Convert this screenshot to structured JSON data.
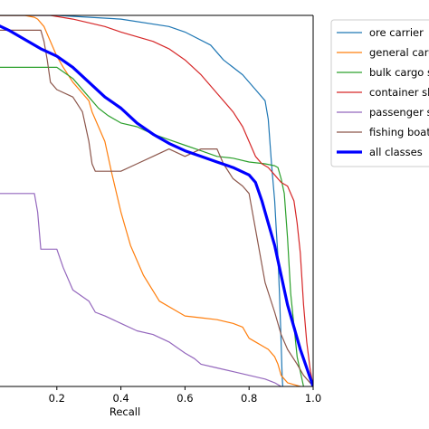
{
  "chart_data": {
    "type": "line",
    "xlabel": "Recall",
    "xlim": [
      0.0,
      1.0
    ],
    "ylim": [
      0.0,
      1.0
    ],
    "x_ticks": [
      "0.2",
      "0.4",
      "0.6",
      "0.8",
      "1.0"
    ],
    "x_tick_values": [
      0.2,
      0.4,
      0.6,
      0.8,
      1.0
    ],
    "legend_placement": "outside-right",
    "series": [
      {
        "name": "ore carrier",
        "color": "#1f77b4",
        "width": 1.2,
        "x": [
          0.0,
          0.2,
          0.4,
          0.55,
          0.6,
          0.68,
          0.72,
          0.78,
          0.82,
          0.85,
          0.86,
          0.87,
          0.88,
          0.885,
          0.89,
          0.895,
          0.9,
          0.903,
          0.905
        ],
        "y": [
          1.0,
          1.0,
          0.99,
          0.97,
          0.955,
          0.92,
          0.88,
          0.84,
          0.8,
          0.77,
          0.72,
          0.6,
          0.5,
          0.42,
          0.35,
          0.25,
          0.12,
          0.03,
          0.0
        ]
      },
      {
        "name": "general cargo ship",
        "color": "#ff7f0e",
        "width": 1.2,
        "x": [
          0.0,
          0.1,
          0.13,
          0.14,
          0.16,
          0.18,
          0.2,
          0.22,
          0.25,
          0.28,
          0.3,
          0.31,
          0.33,
          0.35,
          0.37,
          0.4,
          0.43,
          0.47,
          0.52,
          0.58,
          0.6,
          0.65,
          0.7,
          0.75,
          0.78,
          0.8,
          0.82,
          0.86,
          0.88,
          0.89,
          0.9,
          0.91,
          0.92,
          0.94,
          0.96
        ],
        "y": [
          1.0,
          1.0,
          0.995,
          0.99,
          0.97,
          0.93,
          0.89,
          0.86,
          0.82,
          0.79,
          0.77,
          0.74,
          0.7,
          0.66,
          0.58,
          0.47,
          0.38,
          0.3,
          0.23,
          0.2,
          0.19,
          0.185,
          0.18,
          0.17,
          0.16,
          0.13,
          0.12,
          0.1,
          0.08,
          0.06,
          0.03,
          0.02,
          0.01,
          0.005,
          0.0
        ]
      },
      {
        "name": "bulk cargo ship",
        "color": "#2ca02c",
        "width": 1.2,
        "x": [
          0.0,
          0.2,
          0.25,
          0.3,
          0.33,
          0.36,
          0.4,
          0.45,
          0.5,
          0.55,
          0.6,
          0.65,
          0.7,
          0.75,
          0.8,
          0.85,
          0.88,
          0.89,
          0.9,
          0.91,
          0.92,
          0.93,
          0.95,
          0.97
        ],
        "y": [
          0.86,
          0.86,
          0.83,
          0.78,
          0.75,
          0.73,
          0.71,
          0.7,
          0.68,
          0.665,
          0.65,
          0.635,
          0.62,
          0.615,
          0.605,
          0.6,
          0.595,
          0.59,
          0.56,
          0.52,
          0.4,
          0.25,
          0.08,
          0.0
        ]
      },
      {
        "name": "container ship",
        "color": "#d62728",
        "width": 1.2,
        "x": [
          0.0,
          0.18,
          0.25,
          0.35,
          0.4,
          0.5,
          0.55,
          0.6,
          0.65,
          0.7,
          0.75,
          0.78,
          0.8,
          0.82,
          0.84,
          0.86,
          0.88,
          0.9,
          0.92,
          0.94,
          0.95,
          0.96,
          0.97,
          0.98,
          0.99,
          1.0
        ],
        "y": [
          1.0,
          1.0,
          0.99,
          0.97,
          0.955,
          0.93,
          0.91,
          0.88,
          0.84,
          0.79,
          0.74,
          0.7,
          0.66,
          0.62,
          0.6,
          0.59,
          0.57,
          0.55,
          0.54,
          0.5,
          0.44,
          0.36,
          0.22,
          0.12,
          0.05,
          0.0
        ]
      },
      {
        "name": "passenger ship",
        "color": "#9467bd",
        "width": 1.2,
        "x": [
          0.0,
          0.13,
          0.14,
          0.15,
          0.2,
          0.22,
          0.25,
          0.3,
          0.32,
          0.35,
          0.4,
          0.45,
          0.5,
          0.55,
          0.6,
          0.63,
          0.65,
          0.7,
          0.75,
          0.8,
          0.85,
          0.88,
          0.9
        ],
        "y": [
          0.52,
          0.52,
          0.47,
          0.37,
          0.37,
          0.32,
          0.26,
          0.23,
          0.2,
          0.19,
          0.17,
          0.15,
          0.14,
          0.12,
          0.09,
          0.075,
          0.06,
          0.05,
          0.04,
          0.03,
          0.02,
          0.01,
          0.0
        ]
      },
      {
        "name": "fishing boat",
        "color": "#8c564b",
        "width": 1.2,
        "x": [
          0.0,
          0.15,
          0.16,
          0.17,
          0.18,
          0.2,
          0.25,
          0.28,
          0.3,
          0.31,
          0.32,
          0.35,
          0.4,
          0.45,
          0.5,
          0.55,
          0.6,
          0.65,
          0.7,
          0.72,
          0.75,
          0.78,
          0.8,
          0.85,
          0.88,
          0.9,
          0.92,
          0.95,
          0.97,
          0.99,
          1.0
        ],
        "y": [
          0.96,
          0.96,
          0.93,
          0.88,
          0.82,
          0.8,
          0.78,
          0.74,
          0.66,
          0.6,
          0.58,
          0.58,
          0.58,
          0.6,
          0.62,
          0.64,
          0.62,
          0.64,
          0.64,
          0.6,
          0.56,
          0.54,
          0.52,
          0.28,
          0.2,
          0.14,
          0.1,
          0.06,
          0.03,
          0.01,
          0.0
        ]
      },
      {
        "name": "all classes",
        "color": "#0000ff",
        "width": 3.2,
        "x": [
          0.0,
          0.05,
          0.1,
          0.15,
          0.2,
          0.25,
          0.3,
          0.35,
          0.4,
          0.45,
          0.5,
          0.55,
          0.6,
          0.65,
          0.7,
          0.75,
          0.8,
          0.82,
          0.84,
          0.86,
          0.88,
          0.9,
          0.92,
          0.94,
          0.96,
          0.98,
          1.0
        ],
        "y": [
          0.98,
          0.96,
          0.935,
          0.91,
          0.89,
          0.86,
          0.82,
          0.78,
          0.75,
          0.71,
          0.68,
          0.655,
          0.635,
          0.62,
          0.605,
          0.59,
          0.57,
          0.55,
          0.5,
          0.44,
          0.38,
          0.3,
          0.22,
          0.16,
          0.1,
          0.05,
          0.0
        ]
      }
    ],
    "legend_entries": [
      "ore carrier",
      "general cargo ship",
      "bulk cargo ship",
      "container ship",
      "passenger ship",
      "fishing boat",
      "all classes"
    ]
  }
}
